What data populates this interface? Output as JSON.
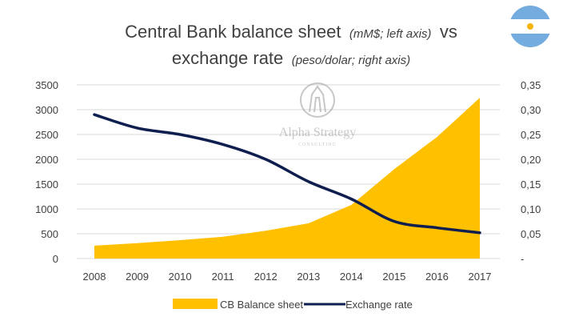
{
  "chart_data": {
    "type": "area+line",
    "title_main": "Central Bank balance sheet",
    "title_left_note": "(mM$; left axis)",
    "title_joiner": "vs",
    "title_line2": "exchange rate",
    "title_right_note": "(peso/dolar; right axis)",
    "categories": [
      "2008",
      "2009",
      "2010",
      "2011",
      "2012",
      "2013",
      "2014",
      "2015",
      "2016",
      "2017"
    ],
    "series": [
      {
        "name": "CB Balance sheet",
        "kind": "area",
        "axis": "left",
        "color": "#FFC000",
        "values": [
          260,
          310,
          370,
          440,
          560,
          710,
          1080,
          1800,
          2450,
          3240
        ]
      },
      {
        "name": "Exchange rate",
        "kind": "line",
        "axis": "right",
        "color": "#0E1E4E",
        "values": [
          0.29,
          0.263,
          0.25,
          0.23,
          0.2,
          0.155,
          0.12,
          0.075,
          0.062,
          0.052
        ]
      }
    ],
    "left_axis": {
      "min": 0,
      "max": 3500,
      "ticks": [
        "0",
        "500",
        "1000",
        "1500",
        "2000",
        "2500",
        "3000",
        "3500"
      ]
    },
    "right_axis": {
      "min": 0,
      "max": 0.35,
      "ticks": [
        "-",
        "0,05",
        "0,10",
        "0,15",
        "0,20",
        "0,25",
        "0,30",
        "0,35"
      ]
    },
    "grid": true,
    "legend_position": "bottom",
    "watermark": {
      "line1": "Alpha Strategy",
      "line2": "CONSULTING"
    },
    "flag": "argentina-flag",
    "flag_colors": {
      "sky": "#74ACDF",
      "white": "#FFFFFF",
      "sun": "#F6B40E"
    }
  }
}
